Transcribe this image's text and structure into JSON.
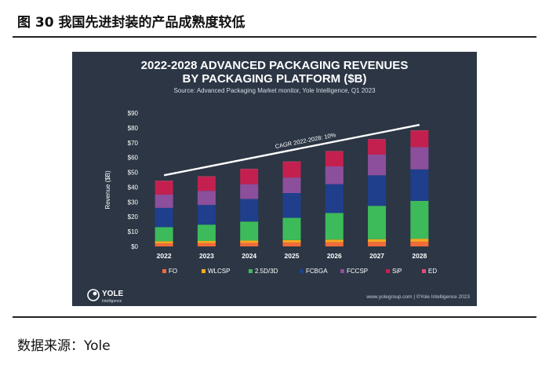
{
  "figure": {
    "caption": "图 30 我国先进封装的产品成熟度较低",
    "source": "数据来源：Yole"
  },
  "chart_data": {
    "type": "bar",
    "stacked": true,
    "title": "2022-2028 ADVANCED PACKAGING REVENUES",
    "title_line2": "BY PACKAGING PLATFORM ($B)",
    "subtitle": "Source: Advanced Packaging Market monitor, Yole Intelligence, Q1 2023",
    "ylabel": "Revenue ($B)",
    "ylim": [
      0,
      90
    ],
    "yticks": [
      "$0",
      "$10",
      "$20",
      "$30",
      "$40",
      "$50",
      "$60",
      "$70",
      "$80",
      "$90"
    ],
    "categories": [
      "2022",
      "2023",
      "2024",
      "2025",
      "2026",
      "2027",
      "2028"
    ],
    "series": [
      {
        "name": "FO",
        "color": "#f26b3a",
        "values": [
          2.0,
          2.2,
          2.4,
          2.6,
          2.8,
          3.0,
          3.2
        ]
      },
      {
        "name": "WLCSP",
        "color": "#f6a821",
        "values": [
          1.5,
          1.5,
          1.6,
          1.7,
          1.8,
          1.9,
          2.0
        ]
      },
      {
        "name": "2.5D/3D",
        "color": "#3dbb5a",
        "values": [
          9.5,
          11.0,
          12.8,
          15.0,
          18.0,
          22.5,
          25.5
        ]
      },
      {
        "name": "FCBGA",
        "color": "#1f3f8c",
        "values": [
          13.0,
          13.3,
          15.2,
          16.7,
          19.4,
          20.6,
          21.3
        ]
      },
      {
        "name": "FCCSP",
        "color": "#8c4f9c",
        "values": [
          9.0,
          9.5,
          10.0,
          10.5,
          12.0,
          14.0,
          15.0
        ]
      },
      {
        "name": "SiP",
        "color": "#c4204f",
        "values": [
          9.0,
          9.5,
          10.0,
          10.5,
          10.0,
          10.0,
          11.0
        ]
      },
      {
        "name": "ED",
        "color": "#e84a76",
        "values": [
          0.3,
          0.3,
          0.3,
          0.3,
          0.3,
          0.3,
          0.3
        ]
      }
    ],
    "trend": {
      "label": "CAGR 2022-2028: 10%",
      "from": {
        "x": "2022",
        "y": 48
      },
      "to": {
        "x": "2028",
        "y": 82
      }
    },
    "legend_position": "bottom",
    "grid": false,
    "brand": "YOLE",
    "brand_sub": "Intelligence",
    "footer_credit": "www.yolegroup.com | ©Yole Intelligence 2023"
  }
}
